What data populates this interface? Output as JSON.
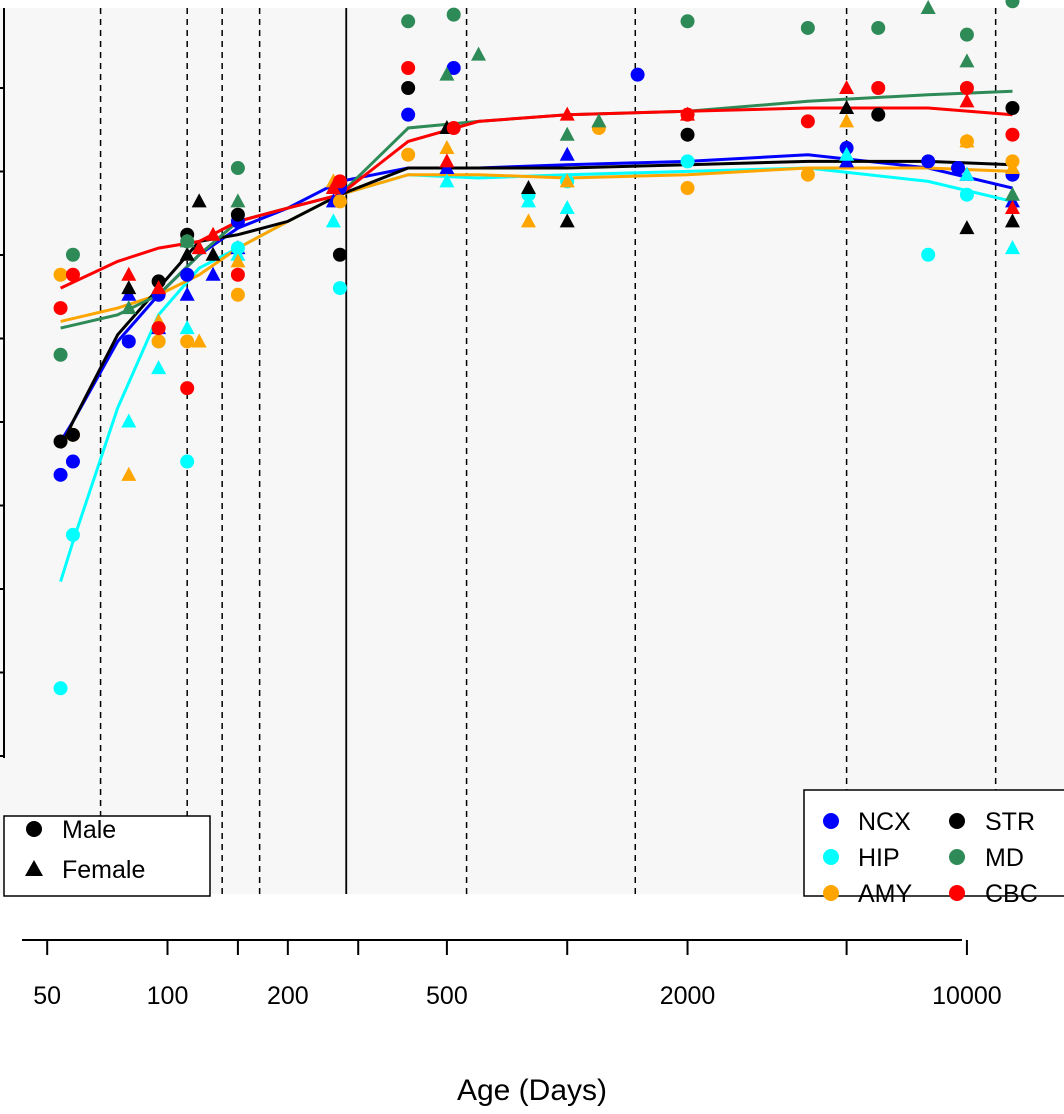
{
  "chart_data": {
    "type": "scatter",
    "title": "",
    "xlabel": "Age (Days)",
    "ylabel": "",
    "xscale": "log",
    "xlim": [
      44,
      15500
    ],
    "ylim": [
      0,
      1
    ],
    "xticks": [
      50,
      100,
      200,
      500,
      2000,
      10000
    ],
    "xtick_labels": [
      "50",
      "100",
      "200",
      "500",
      "2000",
      "10000"
    ],
    "vlines_dashed": [
      68,
      112,
      137,
      170,
      560,
      1480,
      5000,
      11800
    ],
    "vline_solid": 280,
    "background": "#f7f7f7",
    "colors": {
      "NCX": "#0000ff",
      "HIP": "#00ffff",
      "AMY": "#ffa500",
      "STR": "#000000",
      "MD": "#2e8b57",
      "CBC": "#ff0000"
    },
    "series": [
      {
        "name": "NCX",
        "curve": [
          [
            54,
            0.47
          ],
          [
            58,
            0.5
          ],
          [
            75,
            0.62
          ],
          [
            95,
            0.69
          ],
          [
            120,
            0.75
          ],
          [
            150,
            0.79
          ],
          [
            200,
            0.82
          ],
          [
            270,
            0.86
          ],
          [
            400,
            0.88
          ],
          [
            600,
            0.88
          ],
          [
            1000,
            0.885
          ],
          [
            2000,
            0.89
          ],
          [
            4000,
            0.9
          ],
          [
            8000,
            0.88
          ],
          [
            13000,
            0.85
          ]
        ],
        "male": [
          [
            54,
            0.42
          ],
          [
            58,
            0.44
          ],
          [
            80,
            0.62
          ],
          [
            95,
            0.69
          ],
          [
            112,
            0.72
          ],
          [
            150,
            0.8
          ],
          [
            270,
            0.85
          ],
          [
            400,
            0.96
          ],
          [
            520,
            1.03
          ],
          [
            1500,
            1.02
          ],
          [
            5000,
            0.91
          ],
          [
            8000,
            0.89
          ],
          [
            9500,
            0.88
          ],
          [
            13000,
            0.87
          ]
        ],
        "female": [
          [
            80,
            0.69
          ],
          [
            95,
            0.64
          ],
          [
            112,
            0.69
          ],
          [
            130,
            0.72
          ],
          [
            150,
            0.76
          ],
          [
            260,
            0.83
          ],
          [
            500,
            0.88
          ],
          [
            1000,
            0.9
          ],
          [
            5000,
            0.89
          ],
          [
            10000,
            0.87
          ],
          [
            13000,
            0.83
          ]
        ]
      },
      {
        "name": "HIP",
        "curve": [
          [
            54,
            0.26
          ],
          [
            58,
            0.32
          ],
          [
            75,
            0.52
          ],
          [
            95,
            0.66
          ],
          [
            120,
            0.73
          ],
          [
            150,
            0.76
          ],
          [
            200,
            0.8
          ],
          [
            270,
            0.84
          ],
          [
            400,
            0.87
          ],
          [
            600,
            0.865
          ],
          [
            1000,
            0.87
          ],
          [
            2000,
            0.875
          ],
          [
            4000,
            0.88
          ],
          [
            8000,
            0.86
          ],
          [
            13000,
            0.83
          ]
        ],
        "male": [
          [
            54,
            0.1
          ],
          [
            58,
            0.33
          ],
          [
            95,
            0.62
          ],
          [
            112,
            0.44
          ],
          [
            150,
            0.76
          ],
          [
            270,
            0.7
          ],
          [
            800,
            0.84
          ],
          [
            1000,
            0.86
          ],
          [
            2000,
            0.89
          ],
          [
            8000,
            0.75
          ],
          [
            10000,
            0.84
          ]
        ],
        "female": [
          [
            80,
            0.5
          ],
          [
            95,
            0.58
          ],
          [
            112,
            0.64
          ],
          [
            150,
            0.75
          ],
          [
            260,
            0.8
          ],
          [
            500,
            0.86
          ],
          [
            800,
            0.83
          ],
          [
            1000,
            0.82
          ],
          [
            5000,
            0.9
          ],
          [
            10000,
            0.87
          ],
          [
            13000,
            0.76
          ]
        ]
      },
      {
        "name": "AMY",
        "curve": [
          [
            54,
            0.65
          ],
          [
            75,
            0.67
          ],
          [
            95,
            0.69
          ],
          [
            120,
            0.72
          ],
          [
            150,
            0.76
          ],
          [
            200,
            0.8
          ],
          [
            270,
            0.84
          ],
          [
            400,
            0.87
          ],
          [
            600,
            0.87
          ],
          [
            1000,
            0.865
          ],
          [
            2000,
            0.87
          ],
          [
            4000,
            0.88
          ],
          [
            8000,
            0.88
          ],
          [
            13000,
            0.875
          ]
        ],
        "male": [
          [
            54,
            0.72
          ],
          [
            58,
            0.48
          ],
          [
            95,
            0.62
          ],
          [
            112,
            0.62
          ],
          [
            150,
            0.69
          ],
          [
            270,
            0.83
          ],
          [
            400,
            0.9
          ],
          [
            1200,
            0.94
          ],
          [
            2000,
            0.85
          ],
          [
            4000,
            0.87
          ],
          [
            10000,
            0.92
          ],
          [
            13000,
            0.89
          ]
        ],
        "female": [
          [
            80,
            0.42
          ],
          [
            95,
            0.65
          ],
          [
            120,
            0.62
          ],
          [
            150,
            0.74
          ],
          [
            260,
            0.86
          ],
          [
            500,
            0.91
          ],
          [
            800,
            0.8
          ],
          [
            1000,
            0.86
          ],
          [
            5000,
            0.95
          ],
          [
            10000,
            0.92
          ],
          [
            13000,
            0.88
          ]
        ]
      },
      {
        "name": "STR",
        "curve": [
          [
            54,
            0.46
          ],
          [
            58,
            0.5
          ],
          [
            75,
            0.63
          ],
          [
            95,
            0.7
          ],
          [
            120,
            0.77
          ],
          [
            150,
            0.78
          ],
          [
            200,
            0.8
          ],
          [
            270,
            0.84
          ],
          [
            400,
            0.88
          ],
          [
            600,
            0.88
          ],
          [
            1000,
            0.88
          ],
          [
            2000,
            0.885
          ],
          [
            4000,
            0.89
          ],
          [
            8000,
            0.89
          ],
          [
            13000,
            0.885
          ]
        ],
        "male": [
          [
            54,
            0.47
          ],
          [
            58,
            0.48
          ],
          [
            95,
            0.71
          ],
          [
            112,
            0.78
          ],
          [
            150,
            0.81
          ],
          [
            270,
            0.75
          ],
          [
            400,
            1.0
          ],
          [
            2000,
            0.93
          ],
          [
            6000,
            0.96
          ],
          [
            13000,
            0.97
          ]
        ],
        "female": [
          [
            80,
            0.7
          ],
          [
            112,
            0.75
          ],
          [
            120,
            0.83
          ],
          [
            130,
            0.75
          ],
          [
            260,
            0.85
          ],
          [
            500,
            0.94
          ],
          [
            800,
            0.85
          ],
          [
            1000,
            0.8
          ],
          [
            5000,
            0.97
          ],
          [
            10000,
            0.79
          ],
          [
            13000,
            0.8
          ]
        ]
      },
      {
        "name": "MD",
        "curve": [
          [
            54,
            0.64
          ],
          [
            75,
            0.66
          ],
          [
            95,
            0.69
          ],
          [
            120,
            0.75
          ],
          [
            150,
            0.8
          ],
          [
            200,
            0.82
          ],
          [
            270,
            0.84
          ],
          [
            400,
            0.94
          ],
          [
            600,
            0.95
          ],
          [
            1000,
            0.96
          ],
          [
            2000,
            0.965
          ],
          [
            4000,
            0.98
          ],
          [
            8000,
            0.99
          ],
          [
            13000,
            0.995
          ]
        ],
        "male": [
          [
            54,
            0.6
          ],
          [
            58,
            0.75
          ],
          [
            112,
            0.77
          ],
          [
            150,
            0.88
          ],
          [
            400,
            1.1
          ],
          [
            520,
            1.11
          ],
          [
            2000,
            1.1
          ],
          [
            4000,
            1.09
          ],
          [
            6000,
            1.09
          ],
          [
            10000,
            1.08
          ],
          [
            13000,
            1.13
          ]
        ],
        "female": [
          [
            80,
            0.67
          ],
          [
            112,
            0.77
          ],
          [
            150,
            0.83
          ],
          [
            500,
            1.02
          ],
          [
            600,
            1.05
          ],
          [
            1000,
            0.93
          ],
          [
            1200,
            0.95
          ],
          [
            8000,
            1.12
          ],
          [
            10000,
            1.04
          ],
          [
            13000,
            0.84
          ]
        ]
      },
      {
        "name": "CBC",
        "curve": [
          [
            54,
            0.7
          ],
          [
            75,
            0.74
          ],
          [
            95,
            0.76
          ],
          [
            120,
            0.77
          ],
          [
            150,
            0.8
          ],
          [
            200,
            0.82
          ],
          [
            270,
            0.84
          ],
          [
            400,
            0.92
          ],
          [
            600,
            0.95
          ],
          [
            1000,
            0.96
          ],
          [
            2000,
            0.965
          ],
          [
            4000,
            0.97
          ],
          [
            8000,
            0.97
          ],
          [
            13000,
            0.96
          ]
        ],
        "male": [
          [
            54,
            0.67
          ],
          [
            58,
            0.72
          ],
          [
            95,
            0.64
          ],
          [
            112,
            0.55
          ],
          [
            150,
            0.72
          ],
          [
            270,
            0.86
          ],
          [
            400,
            1.03
          ],
          [
            520,
            0.94
          ],
          [
            2000,
            0.96
          ],
          [
            4000,
            0.95
          ],
          [
            6000,
            1.0
          ],
          [
            10000,
            1.0
          ],
          [
            13000,
            0.93
          ]
        ],
        "female": [
          [
            80,
            0.72
          ],
          [
            95,
            0.7
          ],
          [
            120,
            0.76
          ],
          [
            130,
            0.78
          ],
          [
            260,
            0.85
          ],
          [
            500,
            0.89
          ],
          [
            1000,
            0.96
          ],
          [
            2000,
            0.96
          ],
          [
            5000,
            1.0
          ],
          [
            10000,
            0.98
          ],
          [
            13000,
            0.82
          ]
        ]
      }
    ],
    "legends": [
      {
        "position": "bottom-left",
        "entries": [
          {
            "label": "Male",
            "shape": "circle"
          },
          {
            "label": "Female",
            "shape": "triangle"
          }
        ]
      },
      {
        "position": "bottom-right",
        "entries": [
          {
            "label": "NCX",
            "series": "NCX"
          },
          {
            "label": "STR",
            "series": "STR"
          },
          {
            "label": "HIP",
            "series": "HIP"
          },
          {
            "label": "MD",
            "series": "MD"
          },
          {
            "label": "AMY",
            "series": "AMY"
          },
          {
            "label": "CBC",
            "series": "CBC"
          }
        ]
      }
    ]
  }
}
